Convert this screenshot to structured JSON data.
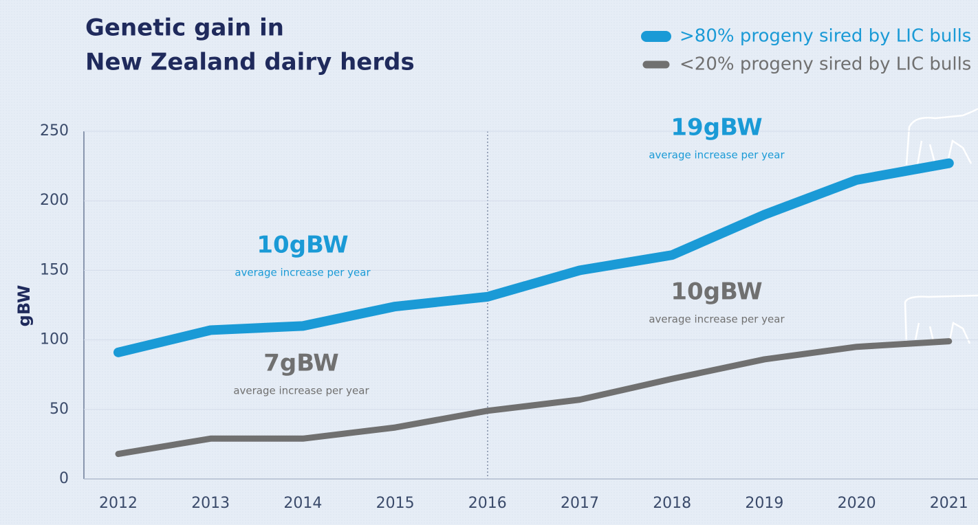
{
  "chart_data": {
    "type": "line",
    "title": [
      "Genetic gain in",
      "New Zealand dairy herds"
    ],
    "y_label": "gBW",
    "categories": [
      "2012",
      "2013",
      "2014",
      "2015",
      "2016",
      "2017",
      "2018",
      "2019",
      "2020",
      "2021"
    ],
    "series": [
      {
        "name": ">80% progeny sired by LIC bulls",
        "color": "#1a9ad6",
        "values": [
          91,
          107,
          110,
          124,
          131,
          150,
          161,
          190,
          215,
          227
        ]
      },
      {
        "name": "<20% progeny sired by LIC bulls",
        "color": "#707070",
        "values": [
          18,
          29,
          29,
          37,
          49,
          57,
          72,
          86,
          95,
          99
        ]
      }
    ],
    "ylim": [
      0,
      250
    ],
    "yticks": [
      0,
      50,
      100,
      150,
      200,
      250
    ],
    "grid": true,
    "legend": "top-right",
    "annotations": [
      {
        "text": "10gBW",
        "subtext": "average increase per year",
        "color": "#1a9ad6"
      },
      {
        "text": "7gBW",
        "subtext": "average increase per year",
        "color": "#707070"
      },
      {
        "text": "19gBW",
        "subtext": "average increase per year",
        "color": "#1a9ad6"
      },
      {
        "text": "10gBW",
        "subtext": "average increase per year",
        "color": "#707070"
      }
    ]
  }
}
